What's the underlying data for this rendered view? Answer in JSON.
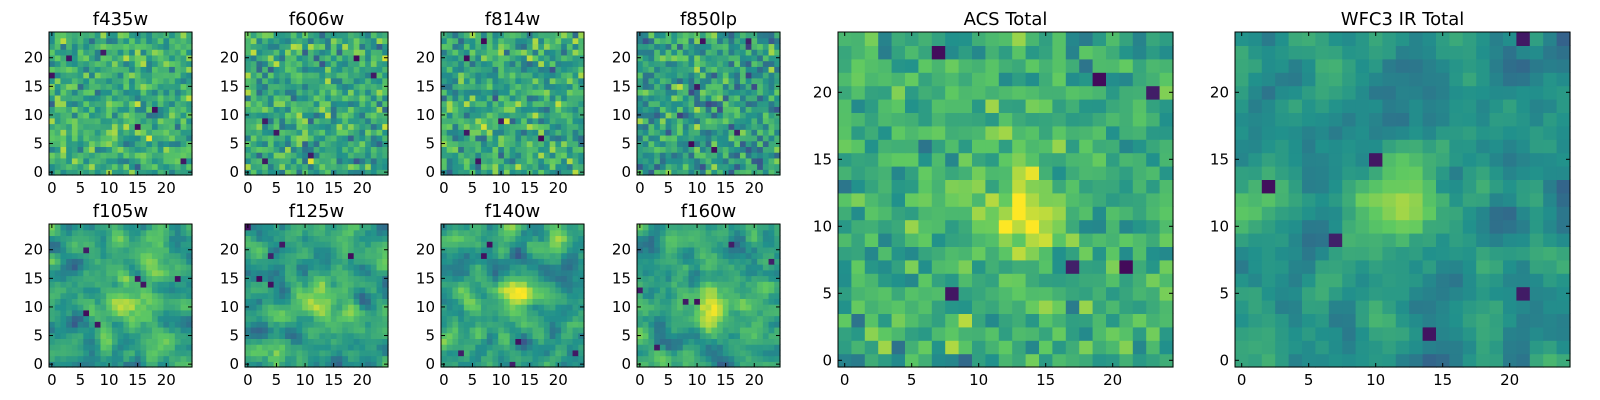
{
  "figure": {
    "description_free": true
  },
  "colormap": "viridis",
  "colormap_stops": [
    "#440154",
    "#3b528b",
    "#21918c",
    "#5ec962",
    "#fde725"
  ],
  "chart_data": [
    {
      "type": "heatmap",
      "title": "f435w",
      "grid_size": 25,
      "seed": 11,
      "smooth": 0,
      "xticks": [
        "0",
        "5",
        "10",
        "15",
        "20"
      ],
      "yticks": [
        "0",
        "5",
        "10",
        "15",
        "20"
      ],
      "value_range": [
        0,
        1
      ],
      "mean": 0.62,
      "spread": 0.22
    },
    {
      "type": "heatmap",
      "title": "f606w",
      "grid_size": 25,
      "seed": 23,
      "smooth": 0,
      "xticks": [
        "0",
        "5",
        "10",
        "15",
        "20"
      ],
      "yticks": [
        "0",
        "5",
        "10",
        "15",
        "20"
      ],
      "value_range": [
        0,
        1
      ],
      "mean": 0.6,
      "spread": 0.24
    },
    {
      "type": "heatmap",
      "title": "f814w",
      "grid_size": 25,
      "seed": 37,
      "smooth": 0,
      "xticks": [
        "0",
        "5",
        "10",
        "15",
        "20"
      ],
      "yticks": [
        "0",
        "5",
        "10",
        "15",
        "20"
      ],
      "value_range": [
        0,
        1
      ],
      "mean": 0.6,
      "spread": 0.24
    },
    {
      "type": "heatmap",
      "title": "f850lp",
      "grid_size": 25,
      "seed": 41,
      "smooth": 0,
      "xticks": [
        "0",
        "5",
        "10",
        "15",
        "20"
      ],
      "yticks": [
        "0",
        "5",
        "10",
        "15",
        "20"
      ],
      "value_range": [
        0,
        1
      ],
      "mean": 0.55,
      "spread": 0.25
    },
    {
      "type": "heatmap",
      "title": "f105w",
      "grid_size": 25,
      "seed": 53,
      "smooth": 1,
      "xticks": [
        "0",
        "5",
        "10",
        "15",
        "20"
      ],
      "yticks": [
        "0",
        "5",
        "10",
        "15",
        "20"
      ],
      "value_range": [
        0,
        1
      ],
      "mean": 0.58,
      "spread": 0.2,
      "peak": [
        13,
        11
      ]
    },
    {
      "type": "heatmap",
      "title": "f125w",
      "grid_size": 25,
      "seed": 67,
      "smooth": 1,
      "xticks": [
        "0",
        "5",
        "10",
        "15",
        "20"
      ],
      "yticks": [
        "0",
        "5",
        "10",
        "15",
        "20"
      ],
      "value_range": [
        0,
        1
      ],
      "mean": 0.58,
      "spread": 0.2,
      "peak": [
        12,
        12
      ]
    },
    {
      "type": "heatmap",
      "title": "f140w",
      "grid_size": 25,
      "seed": 71,
      "smooth": 1,
      "xticks": [
        "0",
        "5",
        "10",
        "15",
        "20"
      ],
      "yticks": [
        "0",
        "5",
        "10",
        "15",
        "20"
      ],
      "value_range": [
        0,
        1
      ],
      "mean": 0.55,
      "spread": 0.21,
      "peak": [
        13,
        12
      ]
    },
    {
      "type": "heatmap",
      "title": "f160w",
      "grid_size": 25,
      "seed": 83,
      "smooth": 1,
      "xticks": [
        "0",
        "5",
        "10",
        "15",
        "20"
      ],
      "yticks": [
        "0",
        "5",
        "10",
        "15",
        "20"
      ],
      "value_range": [
        0,
        1
      ],
      "mean": 0.58,
      "spread": 0.2,
      "peak": [
        13,
        10
      ]
    },
    {
      "type": "heatmap",
      "title": "ACS Total",
      "grid_size": 25,
      "seed": 97,
      "smooth": 0,
      "xticks": [
        "0",
        "5",
        "10",
        "15",
        "20"
      ],
      "yticks": [
        "0",
        "5",
        "10",
        "15",
        "20"
      ],
      "value_range": [
        0,
        1
      ],
      "mean": 0.62,
      "spread": 0.18,
      "peak": [
        13,
        11
      ]
    },
    {
      "type": "heatmap",
      "title": "WFC3 IR Total",
      "grid_size": 25,
      "seed": 101,
      "smooth": 1,
      "xticks": [
        "0",
        "5",
        "10",
        "15",
        "20"
      ],
      "yticks": [
        "0",
        "5",
        "10",
        "15",
        "20"
      ],
      "value_range": [
        0,
        1
      ],
      "mean": 0.52,
      "spread": 0.16,
      "peak": [
        12,
        12
      ]
    }
  ]
}
